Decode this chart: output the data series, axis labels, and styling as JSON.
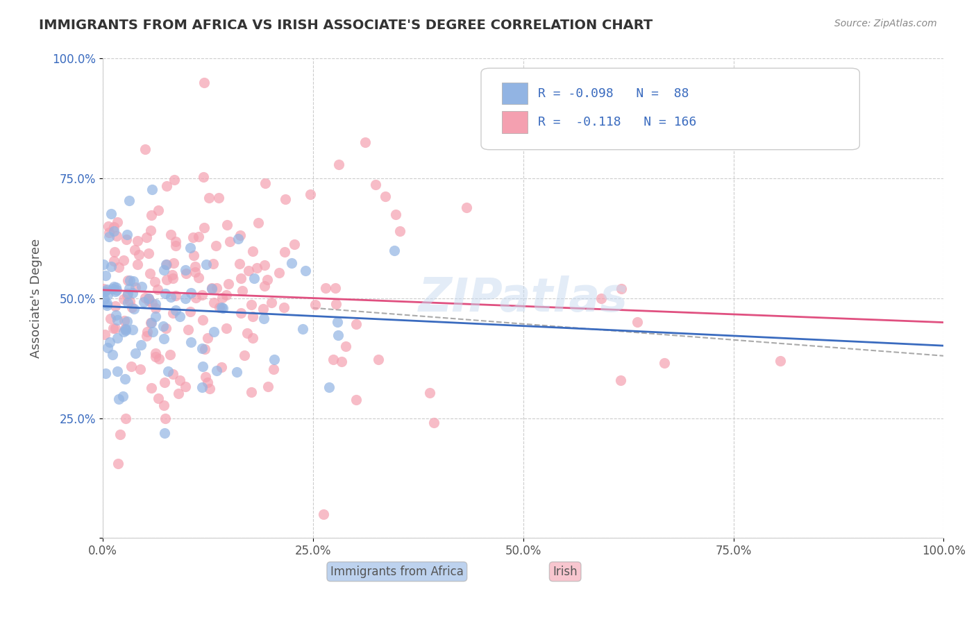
{
  "title": "IMMIGRANTS FROM AFRICA VS IRISH ASSOCIATE'S DEGREE CORRELATION CHART",
  "source": "Source: ZipAtlas.com",
  "ylabel": "Associate's Degree",
  "legend_label1": "Immigrants from Africa",
  "legend_label2": "Irish",
  "r1": -0.098,
  "n1": 88,
  "r2": -0.118,
  "n2": 166,
  "color1": "#92b4e3",
  "color2": "#f4a0b0",
  "line_color1": "#3a6bbf",
  "line_color2": "#e05080",
  "watermark": "ZIPatlas",
  "xlim": [
    0.0,
    100.0
  ],
  "ylim": [
    0.0,
    100.0
  ],
  "x_ticks": [
    0.0,
    25.0,
    50.0,
    75.0,
    100.0
  ],
  "y_ticks": [
    0.0,
    25.0,
    50.0,
    75.0,
    100.0
  ],
  "grid_color": "#cccccc",
  "background_color": "#ffffff",
  "seed1": 42,
  "seed2": 123
}
